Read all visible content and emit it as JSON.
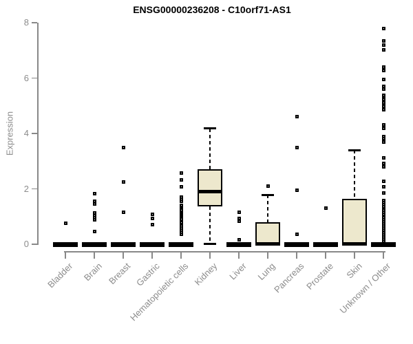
{
  "chart_data": {
    "type": "box",
    "title": "ENSG00000236208 - C10orf71-AS1",
    "xlabel": "",
    "ylabel": "Expression",
    "ylim": [
      0,
      8
    ],
    "yticks": [
      0,
      2,
      4,
      6,
      8
    ],
    "grid": false,
    "legend": "none",
    "categories": [
      "Bladder",
      "Brain",
      "Breast",
      "Gastric",
      "Hematopoietic cells",
      "Kidney",
      "Liver",
      "Lung",
      "Pancreas",
      "Prostate",
      "Skin",
      "Unknown / Other"
    ],
    "boxes": [
      {
        "category": "Bladder",
        "q1": 0,
        "median": 0,
        "q3": 0,
        "whisker_low": 0,
        "whisker_high": 0,
        "outliers": [
          0.75
        ]
      },
      {
        "category": "Brain",
        "q1": 0,
        "median": 0,
        "q3": 0,
        "whisker_low": 0,
        "whisker_high": 0,
        "outliers": [
          1.82,
          1.55,
          1.45,
          1.12,
          1.03,
          0.95,
          0.87,
          0.45
        ]
      },
      {
        "category": "Breast",
        "q1": 0,
        "median": 0,
        "q3": 0,
        "whisker_low": 0,
        "whisker_high": 0,
        "outliers": [
          3.5,
          2.26,
          1.15
        ]
      },
      {
        "category": "Gastric",
        "q1": 0,
        "median": 0,
        "q3": 0,
        "whisker_low": 0,
        "whisker_high": 0,
        "outliers": [
          1.07,
          0.94,
          0.7
        ]
      },
      {
        "category": "Hematopoietic cells",
        "q1": 0,
        "median": 0,
        "q3": 0,
        "whisker_low": 0,
        "whisker_high": 0,
        "outliers": [
          2.57,
          2.32,
          2.07,
          1.71,
          1.63,
          1.56,
          1.4,
          1.34,
          1.28,
          1.22,
          1.16,
          1.1,
          1.05,
          1.0,
          0.95,
          0.9,
          0.84,
          0.78,
          0.72,
          0.65,
          0.58,
          0.51,
          0.44,
          0.37
        ]
      },
      {
        "category": "Kidney",
        "q1": 1.37,
        "median": 1.91,
        "q3": 2.71,
        "whisker_low": 0.02,
        "whisker_high": 4.18,
        "outliers": []
      },
      {
        "category": "Liver",
        "q1": 0,
        "median": 0,
        "q3": 0,
        "whisker_low": 0,
        "whisker_high": 0,
        "outliers": [
          1.15,
          0.92,
          0.82,
          0.15
        ]
      },
      {
        "category": "Lung",
        "q1": 0,
        "median": 0.02,
        "q3": 0.8,
        "whisker_low": 0,
        "whisker_high": 1.78,
        "outliers": [
          2.1
        ]
      },
      {
        "category": "Pancreas",
        "q1": 0,
        "median": 0,
        "q3": 0,
        "whisker_low": 0,
        "whisker_high": 0,
        "outliers": [
          4.6,
          3.48,
          1.95,
          0.37
        ]
      },
      {
        "category": "Prostate",
        "q1": 0,
        "median": 0,
        "q3": 0,
        "whisker_low": 0,
        "whisker_high": 0,
        "outliers": [
          1.3
        ]
      },
      {
        "category": "Skin",
        "q1": 0,
        "median": 0.02,
        "q3": 1.64,
        "whisker_low": 0,
        "whisker_high": 3.4,
        "outliers": []
      },
      {
        "category": "Unknown / Other",
        "q1": 0,
        "median": 0,
        "q3": 0,
        "whisker_low": 0,
        "whisker_high": 0,
        "outliers": [
          7.8,
          7.33,
          7.2,
          7.01,
          6.39,
          6.28,
          5.96,
          5.71,
          5.6,
          5.38,
          5.26,
          5.22,
          5.1,
          4.98,
          4.85,
          4.3,
          4.18,
          3.89,
          3.81,
          3.69,
          3.12,
          2.91,
          2.8,
          2.28,
          2.07,
          1.84,
          1.57,
          1.5,
          1.43,
          1.36,
          1.29,
          1.22,
          1.15,
          1.08,
          1.01,
          0.95,
          0.87,
          0.8,
          0.73,
          0.66,
          0.58,
          0.5,
          0.42,
          0.34,
          0.26,
          0.19,
          0.12
        ]
      }
    ],
    "colors": {
      "box_fill": "#EDE8CD",
      "box_border": "#000000",
      "median": "#000000",
      "outlier": "#000000",
      "axis": "#888888",
      "tick_label": "#8C8C8C",
      "title": "#000000",
      "background": "#FFFFFF"
    }
  }
}
